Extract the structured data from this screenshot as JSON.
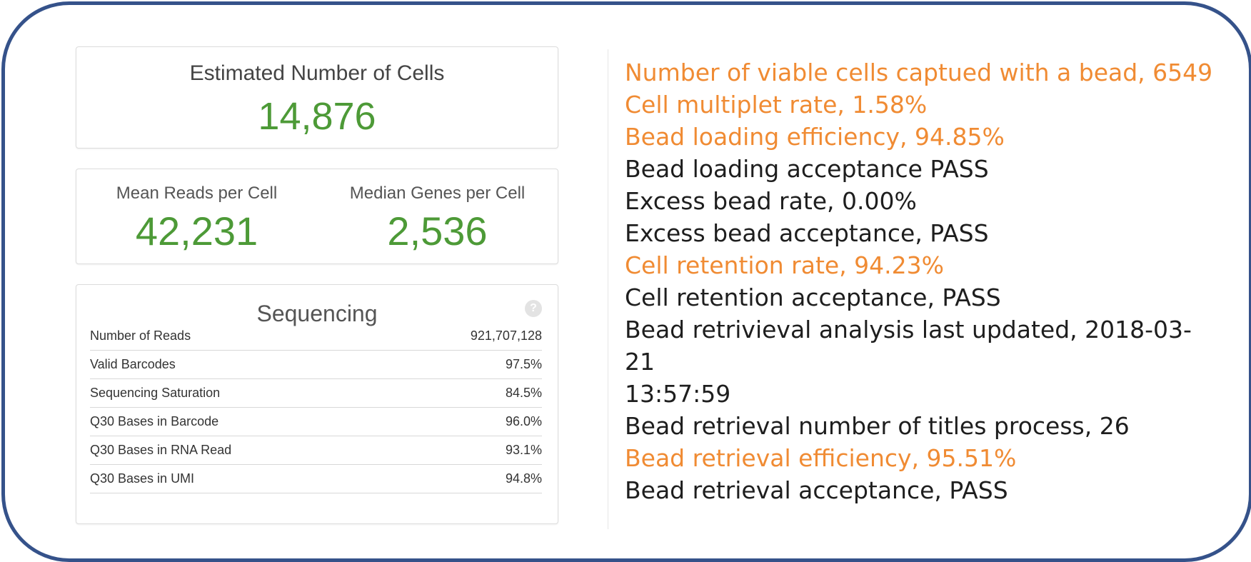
{
  "colors": {
    "frame_border": "#35528a",
    "value_green": "#4d9a37",
    "highlight_orange": "#f08b33",
    "text_dark": "#1e1e1e"
  },
  "summary": {
    "cells_title": "Estimated Number of Cells",
    "cells_value": "14,876",
    "mean_reads_label": "Mean Reads per Cell",
    "mean_reads_value": "42,231",
    "median_genes_label": "Median Genes per Cell",
    "median_genes_value": "2,536"
  },
  "sequencing": {
    "title": "Sequencing",
    "help_icon": "?",
    "rows": [
      {
        "label": "Number of Reads",
        "value": "921,707,128"
      },
      {
        "label": "Valid Barcodes",
        "value": "97.5%"
      },
      {
        "label": "Sequencing Saturation",
        "value": "84.5%"
      },
      {
        "label": "Q30 Bases in Barcode",
        "value": "96.0%"
      },
      {
        "label": "Q30 Bases in RNA Read",
        "value": "93.1%"
      },
      {
        "label": "Q30 Bases in UMI",
        "value": "94.8%"
      }
    ]
  },
  "bead_report": {
    "lines": [
      {
        "text": "Number of viable cells captued with a bead, 6549",
        "highlight": true
      },
      {
        "text": "Cell multiplet rate, 1.58%",
        "highlight": true
      },
      {
        "text": "Bead loading efficiency, 94.85%",
        "highlight": true
      },
      {
        "text": "Bead loading acceptance PASS",
        "highlight": false
      },
      {
        "text": "Excess bead rate, 0.00%",
        "highlight": false
      },
      {
        "text": "Excess bead acceptance, PASS",
        "highlight": false
      },
      {
        "text": "Cell retention rate, 94.23%",
        "highlight": true
      },
      {
        "text": "Cell retention acceptance, PASS",
        "highlight": false
      },
      {
        "text": "Bead retrivieval analysis last updated, 2018-03-",
        "highlight": false
      },
      {
        "text": "21",
        "highlight": false
      },
      {
        "text": "13:57:59",
        "highlight": false
      },
      {
        "text": "Bead retrieval number of titles process, 26",
        "highlight": false
      },
      {
        "text": "Bead retrieval efficiency, 95.51%",
        "highlight": true
      },
      {
        "text": "Bead retrieval acceptance, PASS",
        "highlight": false
      }
    ]
  }
}
